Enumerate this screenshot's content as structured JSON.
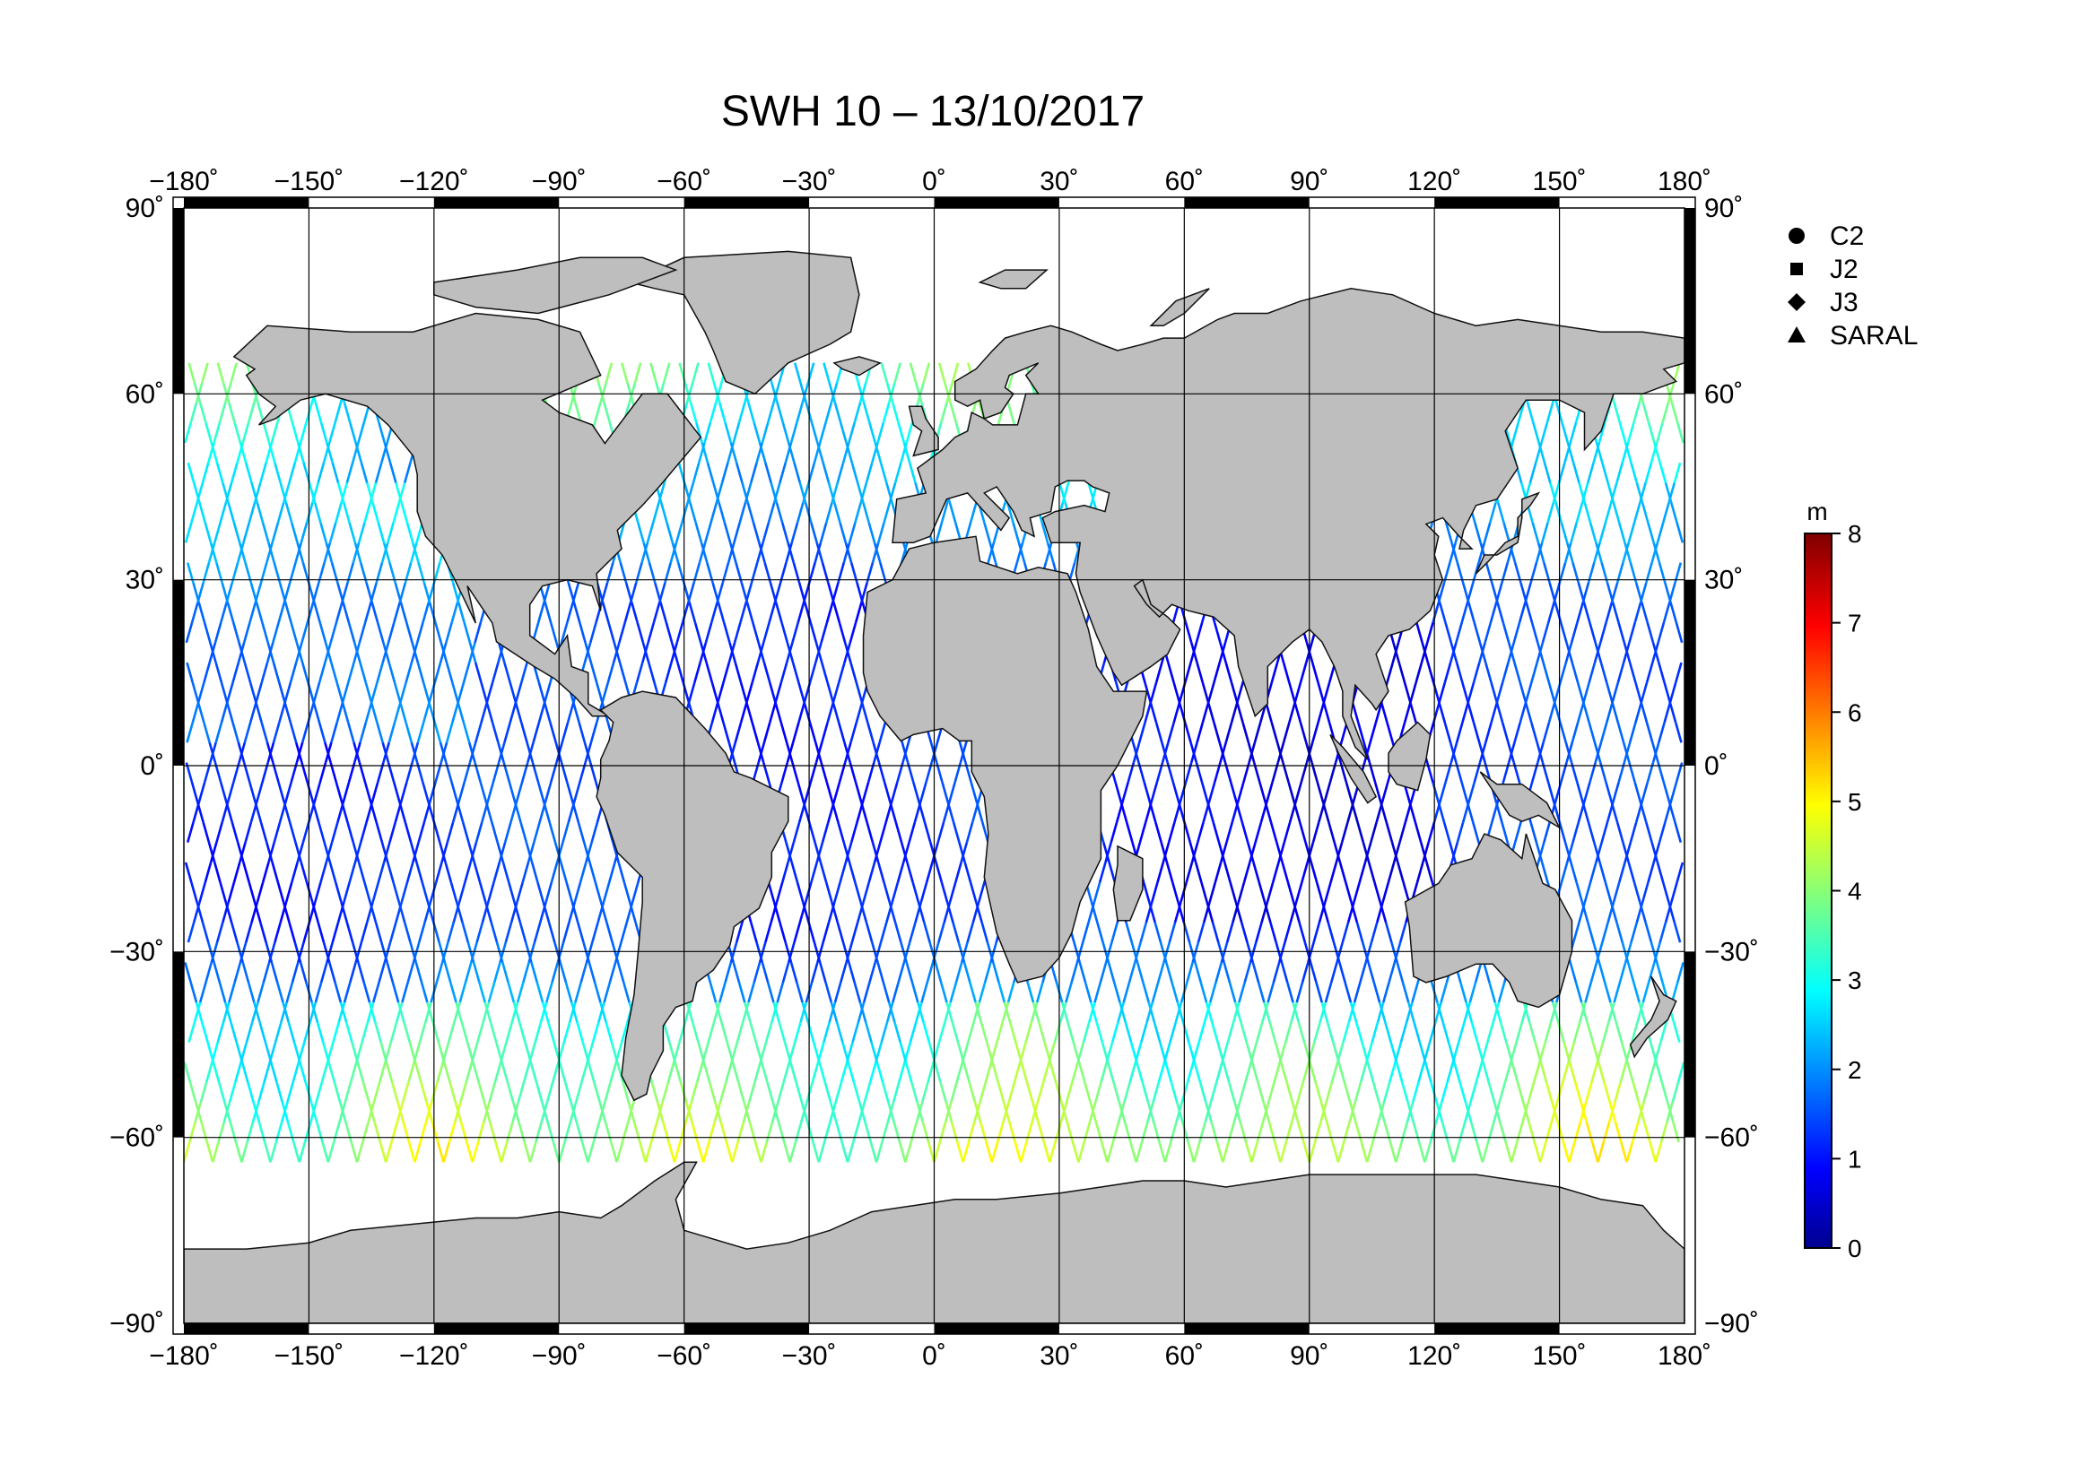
{
  "title": "SWH 10 – 13/10/2017",
  "map": {
    "projection": "equirectangular",
    "lon_range": [
      -180,
      180
    ],
    "lat_range": [
      -90,
      90
    ],
    "grid_lon_step": 30,
    "grid_lat": [
      -60,
      -30,
      0,
      30,
      60
    ],
    "land_color": "#bebebe",
    "ocean_color": "#ffffff",
    "data_lat_band": [
      -64,
      65
    ]
  },
  "axes": {
    "top_lon_labels": [
      "−180˚",
      "−150˚",
      "−120˚",
      "−90˚",
      "−60˚",
      "−30˚",
      "0˚",
      "30˚",
      "60˚",
      "90˚",
      "120˚",
      "150˚",
      "180˚"
    ],
    "bottom_lon_labels": [
      "−180˚",
      "−150˚",
      "−120˚",
      "−90˚",
      "−60˚",
      "−30˚",
      "0˚",
      "30˚",
      "60˚",
      "90˚",
      "120˚",
      "150˚",
      "180˚"
    ],
    "lat_labels": [
      "90˚",
      "60˚",
      "30˚",
      "0˚",
      "−30˚",
      "−60˚",
      "−90˚"
    ]
  },
  "legend": {
    "items": [
      {
        "symbol": "circle",
        "label": "C2"
      },
      {
        "symbol": "square",
        "label": "J2"
      },
      {
        "symbol": "diamond",
        "label": "J3"
      },
      {
        "symbol": "triangle",
        "label": "SARAL"
      }
    ]
  },
  "colorbar": {
    "unit": "m",
    "min": 0,
    "max": 8,
    "tick_labels": [
      "0",
      "1",
      "2",
      "3",
      "4",
      "5",
      "6",
      "7",
      "8"
    ],
    "colormap": "jet"
  },
  "icons": {
    "land": "land-polygons",
    "tracks": "satellite-ground-tracks"
  }
}
